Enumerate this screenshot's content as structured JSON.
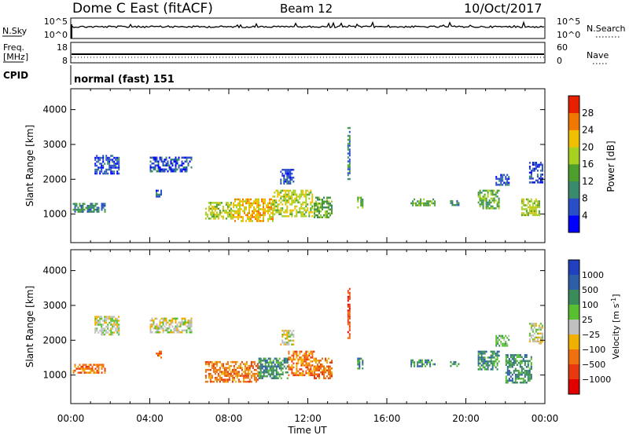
{
  "header": {
    "radar": "Dome C East (fitACF)",
    "beam": "Beam 12",
    "date": "10/Oct/2017"
  },
  "noise_panel": {
    "left_label": "N.Sky",
    "left_ticks": [
      "10^5",
      "10^0"
    ],
    "right_label": "N.Search",
    "right_ticks": [
      "10^5",
      "10^0"
    ]
  },
  "freq_panel": {
    "left_label_line1": "Freq.",
    "left_label_line2": "[MHz]",
    "left_ticks": [
      "18",
      "8"
    ],
    "right_label": "Nave",
    "right_ticks": [
      "60",
      "0"
    ]
  },
  "cpid_panel": {
    "label": "CPID",
    "value": "normal (fast) 151"
  },
  "colors": {
    "power_scale": [
      "#0000ff",
      "#2a4ec8",
      "#3a8a6e",
      "#4ea02e",
      "#a8d020",
      "#f0c000",
      "#f07800",
      "#e82000"
    ],
    "velocity_scale": [
      "#2040c0",
      "#2e5ea8",
      "#3a8a5a",
      "#58c030",
      "#c0c0c0",
      "#f0b000",
      "#f07010",
      "#e83810",
      "#e00000"
    ]
  },
  "chart_data": [
    {
      "type": "heatmap",
      "name": "power",
      "ylabel": "Slant Range [km]",
      "yticks": [
        1000,
        2000,
        3000,
        4000
      ],
      "ylim": [
        180,
        4600
      ],
      "xlim": [
        0,
        24
      ],
      "colorbar": {
        "label": "Power [dB]",
        "ticks": [
          "4",
          "8",
          "12",
          "16",
          "20",
          "24",
          "28"
        ],
        "range": [
          0,
          32
        ]
      },
      "regions": [
        {
          "t0": 0.1,
          "t1": 1.7,
          "r0": 1050,
          "r1": 1320,
          "level": 2
        },
        {
          "t0": 1.2,
          "t1": 2.4,
          "r0": 2150,
          "r1": 2700,
          "level": 1
        },
        {
          "t0": 4.0,
          "t1": 6.1,
          "r0": 2200,
          "r1": 2650,
          "level": 1
        },
        {
          "t0": 4.3,
          "t1": 4.6,
          "r0": 1500,
          "r1": 1700,
          "level": 1
        },
        {
          "t0": 6.8,
          "t1": 8.2,
          "r0": 850,
          "r1": 1350,
          "level": 4
        },
        {
          "t0": 8.2,
          "t1": 10.2,
          "r0": 800,
          "r1": 1450,
          "level": 5
        },
        {
          "t0": 10.2,
          "t1": 12.2,
          "r0": 950,
          "r1": 1700,
          "level": 4
        },
        {
          "t0": 10.6,
          "t1": 11.3,
          "r0": 1900,
          "r1": 2300,
          "level": 1
        },
        {
          "t0": 12.3,
          "t1": 13.2,
          "r0": 900,
          "r1": 1500,
          "level": 3
        },
        {
          "t0": 14.0,
          "t1": 14.1,
          "r0": 2000,
          "r1": 3500,
          "level": 2
        },
        {
          "t0": 14.5,
          "t1": 14.8,
          "r0": 1200,
          "r1": 1500,
          "level": 3
        },
        {
          "t0": 17.2,
          "t1": 18.4,
          "r0": 1250,
          "r1": 1450,
          "level": 3
        },
        {
          "t0": 19.2,
          "t1": 19.6,
          "r0": 1250,
          "r1": 1400,
          "level": 2
        },
        {
          "t0": 20.6,
          "t1": 21.7,
          "r0": 1150,
          "r1": 1700,
          "level": 3
        },
        {
          "t0": 21.5,
          "t1": 22.2,
          "r0": 1850,
          "r1": 2150,
          "level": 1
        },
        {
          "t0": 22.8,
          "t1": 23.7,
          "r0": 950,
          "r1": 1450,
          "level": 4
        },
        {
          "t0": 23.2,
          "t1": 23.9,
          "r0": 1900,
          "r1": 2500,
          "level": 1
        }
      ]
    },
    {
      "type": "heatmap",
      "name": "velocity",
      "ylabel": "Slant Range [km]",
      "yticks": [
        1000,
        2000,
        3000,
        4000
      ],
      "ylim": [
        180,
        4600
      ],
      "xlim": [
        0,
        24
      ],
      "xlabel": "Time UT",
      "xticks": [
        "00:00",
        "04:00",
        "08:00",
        "12:00",
        "16:00",
        "20:00",
        "00:00"
      ],
      "colorbar": {
        "label": "Velocity [m s",
        "label_sup": "-1",
        "label_end": "]",
        "ticks": [
          "1000",
          "500",
          "100",
          "25",
          "−25",
          "−100",
          "−500",
          "−1000"
        ]
      },
      "regions": [
        {
          "t0": 0.1,
          "t1": 1.7,
          "r0": 1050,
          "r1": 1320,
          "level": 6
        },
        {
          "t0": 1.2,
          "t1": 2.4,
          "r0": 2150,
          "r1": 2700,
          "level": 4
        },
        {
          "t0": 4.0,
          "t1": 6.1,
          "r0": 2200,
          "r1": 2650,
          "level": 4
        },
        {
          "t0": 4.3,
          "t1": 4.6,
          "r0": 1500,
          "r1": 1700,
          "level": 6
        },
        {
          "t0": 6.8,
          "t1": 9.5,
          "r0": 800,
          "r1": 1400,
          "level": 6
        },
        {
          "t0": 9.5,
          "t1": 11.0,
          "r0": 900,
          "r1": 1500,
          "level": 2
        },
        {
          "t0": 11.0,
          "t1": 12.3,
          "r0": 1000,
          "r1": 1700,
          "level": 6
        },
        {
          "t0": 10.6,
          "t1": 11.3,
          "r0": 1900,
          "r1": 2300,
          "level": 4
        },
        {
          "t0": 12.3,
          "t1": 13.2,
          "r0": 900,
          "r1": 1500,
          "level": 6
        },
        {
          "t0": 14.0,
          "t1": 14.1,
          "r0": 2000,
          "r1": 3500,
          "level": 7
        },
        {
          "t0": 14.5,
          "t1": 14.8,
          "r0": 1200,
          "r1": 1500,
          "level": 2
        },
        {
          "t0": 17.2,
          "t1": 18.4,
          "r0": 1250,
          "r1": 1450,
          "level": 2
        },
        {
          "t0": 19.2,
          "t1": 19.6,
          "r0": 1250,
          "r1": 1400,
          "level": 2
        },
        {
          "t0": 20.6,
          "t1": 21.7,
          "r0": 1150,
          "r1": 1700,
          "level": 2
        },
        {
          "t0": 21.5,
          "t1": 22.2,
          "r0": 1850,
          "r1": 2150,
          "level": 3
        },
        {
          "t0": 22.0,
          "t1": 23.3,
          "r0": 800,
          "r1": 1600,
          "level": 2
        },
        {
          "t0": 23.2,
          "t1": 23.9,
          "r0": 1900,
          "r1": 2500,
          "level": 4
        }
      ]
    }
  ]
}
